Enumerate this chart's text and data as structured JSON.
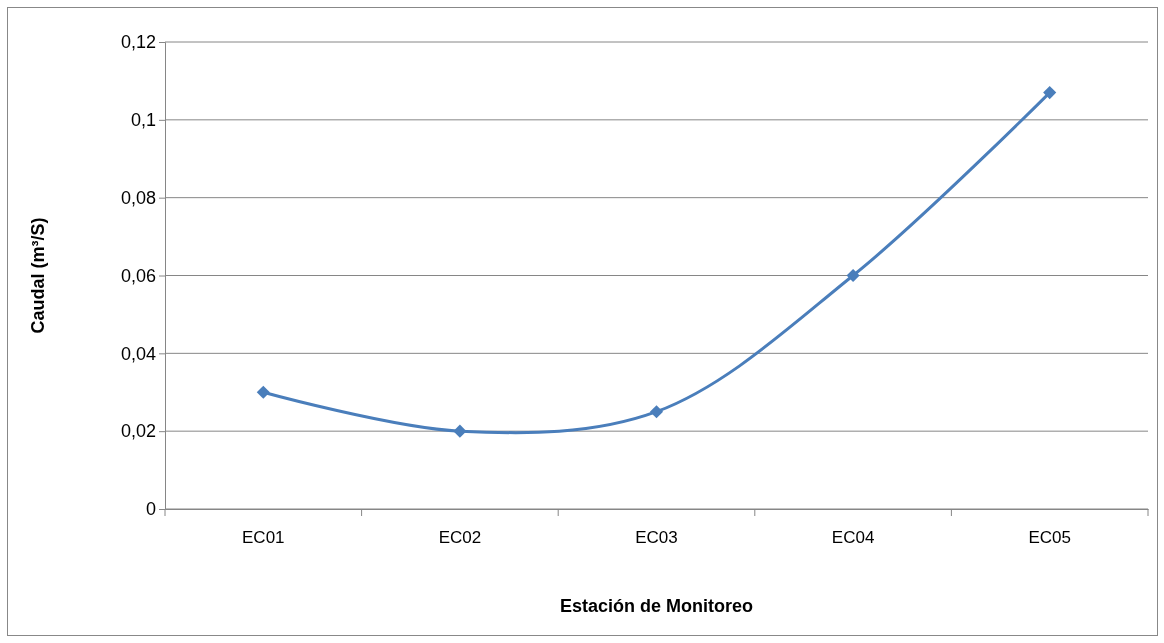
{
  "chart_data": {
    "type": "line",
    "xlabel": "Estación de Monitoreo",
    "ylabel": "Caudal (m³/S)",
    "categories": [
      "EC01",
      "EC02",
      "EC03",
      "EC04",
      "EC05"
    ],
    "series": [
      {
        "color": "#4a7ebb",
        "values": [
          0.03,
          0.02,
          0.025,
          0.06,
          0.107
        ]
      }
    ],
    "ylim": [
      0,
      0.12
    ],
    "yticks": [
      {
        "value": 0,
        "label": "0"
      },
      {
        "value": 0.02,
        "label": "0,02"
      },
      {
        "value": 0.04,
        "label": "0,04"
      },
      {
        "value": 0.06,
        "label": "0,06"
      },
      {
        "value": 0.08,
        "label": "0,08"
      },
      {
        "value": 0.1,
        "label": "0,1"
      },
      {
        "value": 0.12,
        "label": "0,12"
      }
    ],
    "grid": "y",
    "marker": "diamond",
    "line_style": "solid"
  }
}
